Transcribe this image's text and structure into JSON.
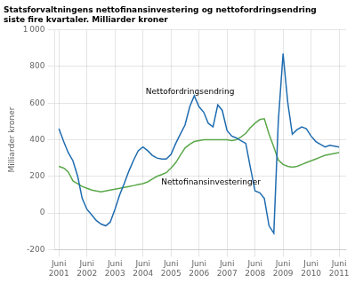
{
  "chart_data": {
    "type": "line",
    "title": "Statsforvaltningens nettofinansinvestering og nettofordringsendring\nsiste fire kvartaler. Milliarder kroner",
    "ylabel": "Milliarder kroner",
    "x": [
      2001.5,
      2001.67,
      2001.83,
      2002.0,
      2002.17,
      2002.33,
      2002.5,
      2002.67,
      2002.83,
      2003.0,
      2003.17,
      2003.33,
      2003.5,
      2003.67,
      2003.83,
      2004.0,
      2004.17,
      2004.33,
      2004.5,
      2004.67,
      2004.83,
      2005.0,
      2005.17,
      2005.33,
      2005.5,
      2005.67,
      2005.83,
      2006.0,
      2006.17,
      2006.33,
      2006.5,
      2006.67,
      2006.83,
      2007.0,
      2007.17,
      2007.33,
      2007.5,
      2007.67,
      2007.83,
      2008.0,
      2008.17,
      2008.33,
      2008.5,
      2008.67,
      2008.83,
      2009.0,
      2009.17,
      2009.33,
      2009.5,
      2009.67,
      2009.83,
      2010.0,
      2010.17,
      2010.33,
      2010.5,
      2010.67,
      2010.83,
      2011.0,
      2011.17,
      2011.33,
      2011.5
    ],
    "series": [
      {
        "color": "#1F6CB0",
        "values": [
          460,
          390,
          330,
          285,
          200,
          80,
          20,
          -10,
          -40,
          -60,
          -70,
          -50,
          20,
          100,
          160,
          230,
          290,
          340,
          360,
          340,
          315,
          300,
          295,
          295,
          320,
          380,
          430,
          480,
          580,
          640,
          580,
          550,
          490,
          470,
          590,
          560,
          450,
          420,
          410,
          395,
          380,
          250,
          120,
          110,
          80,
          -70,
          -110,
          500,
          870,
          600,
          430,
          455,
          470,
          460,
          420,
          390,
          375,
          360,
          370,
          365,
          360
        ]
      },
      {
        "color": "#5BA84A",
        "values": [
          255,
          245,
          225,
          175,
          160,
          145,
          135,
          125,
          120,
          115,
          120,
          125,
          130,
          135,
          140,
          145,
          150,
          155,
          160,
          170,
          185,
          200,
          210,
          220,
          245,
          275,
          315,
          355,
          375,
          390,
          395,
          400,
          400,
          400,
          400,
          400,
          400,
          395,
          400,
          415,
          435,
          465,
          490,
          510,
          515,
          430,
          360,
          290,
          265,
          255,
          250,
          255,
          265,
          275,
          285,
          295,
          305,
          315,
          320,
          325,
          330
        ]
      }
    ],
    "xlim": [
      2001.35,
      2011.75
    ],
    "xticks": [
      {
        "value": 2001.5,
        "label": "Juni\n2001"
      },
      {
        "value": 2002.5,
        "label": "Juni\n2002"
      },
      {
        "value": 2003.5,
        "label": "Juni\n2003"
      },
      {
        "value": 2004.5,
        "label": "Juni\n2004"
      },
      {
        "value": 2005.5,
        "label": "Juni\n2005"
      },
      {
        "value": 2006.5,
        "label": "Juni\n2006"
      },
      {
        "value": 2007.5,
        "label": "Juni\n2007"
      },
      {
        "value": 2008.5,
        "label": "Juni\n2008"
      },
      {
        "value": 2009.5,
        "label": "Juni\n2009"
      },
      {
        "value": 2010.5,
        "label": "Juni\n2010"
      },
      {
        "value": 2011.5,
        "label": "Juni\n2011"
      }
    ],
    "ylim": [
      -200,
      1000
    ],
    "yticks": [
      -200,
      0,
      200,
      400,
      600,
      800,
      {
        "value": 1000,
        "label": "1 000"
      }
    ],
    "grid": true,
    "annotations": [
      {
        "text": "Nettofordringsendring",
        "x": 2004.6,
        "y": 640
      },
      {
        "text": "Nettofinansinvesteringer",
        "x": 2005.15,
        "y": 190
      }
    ]
  }
}
